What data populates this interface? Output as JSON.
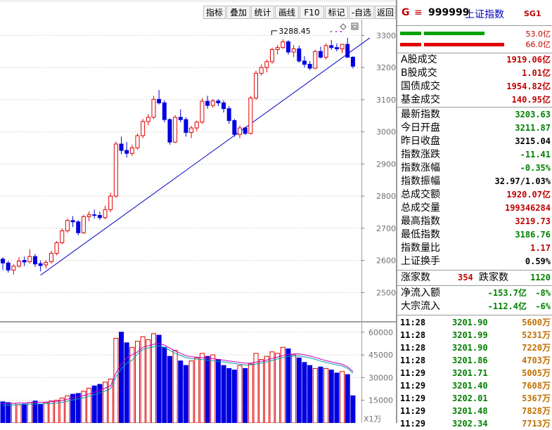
{
  "toolbar": {
    "buttons": [
      {
        "label": "指标"
      },
      {
        "label": "叠加"
      },
      {
        "label": "统计"
      },
      {
        "label": "画线"
      },
      {
        "label": "F10"
      },
      {
        "label": "标记"
      },
      {
        "label": "-自选"
      },
      {
        "label": "返回"
      }
    ]
  },
  "chart": {
    "high_marker": "3288.45",
    "vol_unit": "X1万",
    "price_ticks": [
      "3300",
      "3200",
      "3100",
      "3000",
      "2900",
      "2800",
      "2700",
      "2600",
      "2500"
    ],
    "vol_ticks": [
      "60000",
      "45000",
      "30000",
      "15000"
    ]
  },
  "chart_data": {
    "type": "candlestick",
    "ylim": [
      2420,
      3340
    ],
    "vol_ylim": [
      0,
      65000
    ],
    "candles": [
      [
        2604,
        2610,
        2570,
        2592
      ],
      [
        2592,
        2598,
        2562,
        2570
      ],
      [
        2570,
        2588,
        2556,
        2582
      ],
      [
        2582,
        2610,
        2578,
        2598
      ],
      [
        2600,
        2612,
        2582,
        2595
      ],
      [
        2596,
        2635,
        2590,
        2612
      ],
      [
        2612,
        2620,
        2580,
        2589
      ],
      [
        2590,
        2600,
        2566,
        2584
      ],
      [
        2586,
        2600,
        2575,
        2594
      ],
      [
        2596,
        2630,
        2590,
        2622
      ],
      [
        2622,
        2660,
        2616,
        2655
      ],
      [
        2655,
        2700,
        2650,
        2692
      ],
      [
        2692,
        2730,
        2686,
        2724
      ],
      [
        2724,
        2738,
        2704,
        2720
      ],
      [
        2720,
        2725,
        2678,
        2686
      ],
      [
        2686,
        2742,
        2682,
        2736
      ],
      [
        2736,
        2752,
        2722,
        2742
      ],
      [
        2742,
        2758,
        2730,
        2740
      ],
      [
        2740,
        2752,
        2726,
        2733
      ],
      [
        2733,
        2770,
        2728,
        2758
      ],
      [
        2758,
        2810,
        2750,
        2800
      ],
      [
        2800,
        2970,
        2795,
        2962
      ],
      [
        2962,
        2985,
        2930,
        2942
      ],
      [
        2942,
        2968,
        2920,
        2933
      ],
      [
        2933,
        2960,
        2925,
        2950
      ],
      [
        2950,
        2995,
        2945,
        2988
      ],
      [
        2988,
        3040,
        2980,
        3032
      ],
      [
        3032,
        3055,
        3020,
        3045
      ],
      [
        3045,
        3112,
        3040,
        3101
      ],
      [
        3101,
        3130,
        3085,
        3090
      ],
      [
        3090,
        3098,
        3030,
        3038
      ],
      [
        3038,
        3042,
        2960,
        2968
      ],
      [
        2968,
        3052,
        2965,
        3045
      ],
      [
        3045,
        3070,
        3030,
        3038
      ],
      [
        3038,
        3045,
        2985,
        2998
      ],
      [
        2998,
        3018,
        2980,
        3012
      ],
      [
        3012,
        3035,
        3002,
        3030
      ],
      [
        3030,
        3105,
        3025,
        3095
      ],
      [
        3095,
        3112,
        3072,
        3082
      ],
      [
        3082,
        3102,
        3075,
        3096
      ],
      [
        3096,
        3102,
        3080,
        3090
      ],
      [
        3090,
        3098,
        3060,
        3072
      ],
      [
        3072,
        3080,
        3025,
        3035
      ],
      [
        3035,
        3040,
        2985,
        2992
      ],
      [
        2992,
        3020,
        2980,
        3012
      ],
      [
        3012,
        3015,
        2990,
        2995
      ],
      [
        2995,
        3112,
        2992,
        3105
      ],
      [
        3105,
        3190,
        3100,
        3182
      ],
      [
        3182,
        3210,
        3175,
        3200
      ],
      [
        3200,
        3225,
        3185,
        3218
      ],
      [
        3218,
        3262,
        3212,
        3256
      ],
      [
        3256,
        3270,
        3240,
        3262
      ],
      [
        3262,
        3288,
        3258,
        3280
      ],
      [
        3280,
        3285,
        3240,
        3248
      ],
      [
        3248,
        3270,
        3232,
        3258
      ],
      [
        3258,
        3268,
        3215,
        3220
      ],
      [
        3220,
        3235,
        3200,
        3210
      ],
      [
        3210,
        3220,
        3192,
        3198
      ],
      [
        3198,
        3255,
        3195,
        3250
      ],
      [
        3250,
        3265,
        3228,
        3232
      ],
      [
        3232,
        3275,
        3225,
        3268
      ],
      [
        3268,
        3285,
        3255,
        3262
      ],
      [
        3262,
        3275,
        3250,
        3258
      ],
      [
        3258,
        3265,
        3245,
        3272
      ],
      [
        3272,
        3292,
        3230,
        3232
      ],
      [
        3232,
        3235,
        3197,
        3204
      ]
    ],
    "volumes": [
      14000,
      13500,
      13000,
      12000,
      12500,
      13500,
      14500,
      12500,
      13500,
      14500,
      15000,
      16500,
      18000,
      19000,
      19500,
      21000,
      23000,
      24500,
      25500,
      27000,
      29000,
      56000,
      60000,
      53000,
      50000,
      54000,
      57000,
      55000,
      59000,
      58000,
      50000,
      44000,
      48000,
      41000,
      38000,
      41000,
      43000,
      46000,
      44000,
      45000,
      42000,
      38000,
      36000,
      35000,
      38000,
      36000,
      39000,
      46000,
      42000,
      44000,
      47000,
      46000,
      50000,
      49000,
      45000,
      43000,
      40000,
      38000,
      36000,
      37000,
      36000,
      35000,
      33000,
      34000,
      32000,
      18000
    ],
    "trendline": [
      [
        2554,
        0
      ],
      [
        3222,
        65
      ]
    ],
    "ma_volume": [
      12800,
      12800,
      13000,
      13200,
      13300,
      13600,
      13800,
      13700,
      13800,
      14000,
      14300,
      14900,
      15700,
      16600,
      17300,
      18100,
      19200,
      20400,
      21600,
      23000,
      24600,
      33000,
      39000,
      43000,
      45000,
      47000,
      50000,
      51000,
      52000,
      52500,
      51500,
      49500,
      47500,
      46000,
      44500,
      43800,
      43500,
      43200,
      42800,
      42500,
      42000,
      41500,
      41000,
      40500,
      40000,
      39500,
      39500,
      40200,
      40800,
      41500,
      42600,
      43600,
      44600,
      45300,
      45600,
      45700,
      45100,
      44300,
      43300,
      42200,
      41200,
      40400,
      39600,
      38800,
      37200,
      34000
    ]
  },
  "panel": {
    "header": {
      "flag": "G",
      "menu": "≡",
      "code": "999999",
      "name": "上证指数",
      "badge": "SG1"
    },
    "ratio_top": "53.0亿",
    "ratio_bottom": "66.0亿",
    "turnover": [
      {
        "k": "A股成交",
        "v": "1919.06亿",
        "c": "#c00000"
      },
      {
        "k": "B股成交",
        "v": "1.01亿",
        "c": "#c00000"
      },
      {
        "k": "国债成交",
        "v": "1954.82亿",
        "c": "#c00000"
      },
      {
        "k": "基金成交",
        "v": "140.95亿",
        "c": "#c00000"
      }
    ],
    "quote": [
      {
        "k": "最新指数",
        "v": "3203.63",
        "c": "#008000"
      },
      {
        "k": "今日开盘",
        "v": "3211.87",
        "c": "#008000"
      },
      {
        "k": "昨日收盘",
        "v": "3215.04",
        "c": "#000000"
      },
      {
        "k": "指数涨跌",
        "v": "-11.41",
        "c": "#008000"
      },
      {
        "k": "指数涨幅",
        "v": "-0.35%",
        "c": "#008000"
      },
      {
        "k": "指数振幅",
        "v": "32.97/1.03%",
        "c": "#000000"
      },
      {
        "k": "总成交额",
        "v": "1920.07亿",
        "c": "#c00000"
      },
      {
        "k": "总成交量",
        "v": "199346284",
        "c": "#c00000"
      },
      {
        "k": "最高指数",
        "v": "3219.73",
        "c": "#c00000"
      },
      {
        "k": "最低指数",
        "v": "3186.76",
        "c": "#008000"
      },
      {
        "k": "指数量比",
        "v": "1.17",
        "c": "#c00000"
      },
      {
        "k": "上证换手",
        "v": "0.59%",
        "c": "#000000"
      }
    ],
    "breadth": {
      "up_label": "涨家数",
      "up": "354",
      "down_label": "跌家数",
      "down": "1120"
    },
    "flow": [
      {
        "k": "净流入额",
        "v": "-153.7亿",
        "p": "-8%"
      },
      {
        "k": "大宗流入",
        "v": "-112.4亿",
        "p": "-6%"
      }
    ],
    "ticks": [
      {
        "t": "11:28",
        "p": "3201.90",
        "v": "5600万"
      },
      {
        "t": "11:28",
        "p": "3201.99",
        "v": "5231万"
      },
      {
        "t": "11:28",
        "p": "3201.90",
        "v": "7220万"
      },
      {
        "t": "11:28",
        "p": "3201.86",
        "v": "4703万"
      },
      {
        "t": "11:29",
        "p": "3201.71",
        "v": "5005万"
      },
      {
        "t": "11:29",
        "p": "3201.40",
        "v": "7608万"
      },
      {
        "t": "11:29",
        "p": "3202.01",
        "v": "5367万"
      },
      {
        "t": "11:29",
        "p": "3201.48",
        "v": "7828万"
      },
      {
        "t": "11:29",
        "p": "3202.34",
        "v": "7713万"
      }
    ]
  }
}
